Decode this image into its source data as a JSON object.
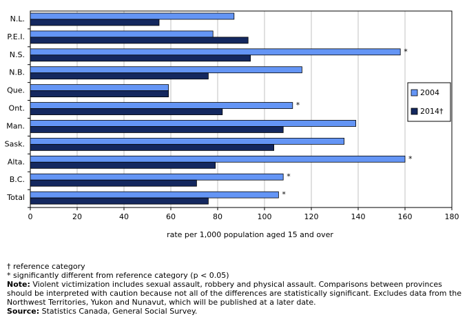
{
  "chart_data": {
    "type": "bar",
    "orientation": "horizontal",
    "categories": [
      "N.L.",
      "P.E.I.",
      "N.S.",
      "N.B.",
      "Que.",
      "Ont.",
      "Man.",
      "Sask.",
      "Alta.",
      "B.C.",
      "Total"
    ],
    "series": [
      {
        "name": "2004",
        "color": "#6495f5",
        "values": [
          87,
          78,
          158,
          116,
          59,
          112,
          139,
          134,
          160,
          108,
          106
        ],
        "markers": [
          null,
          null,
          "*",
          null,
          null,
          "*",
          null,
          null,
          "*",
          "*",
          "*"
        ]
      },
      {
        "name": "2014†",
        "color": "#14285f",
        "values": [
          55,
          93,
          94,
          76,
          59,
          82,
          108,
          104,
          79,
          71,
          76
        ]
      }
    ],
    "xlim": [
      0,
      180
    ],
    "xticks": [
      0,
      20,
      40,
      60,
      80,
      100,
      120,
      140,
      160,
      180
    ],
    "x_label": "rate per 1,000 population aged 15 and over",
    "grid": true,
    "legend": "right"
  },
  "footnotes": [
    "† reference category",
    "* significantly different from reference category (p < 0.05)"
  ],
  "note": {
    "label": "Note:",
    "text": "Violent victimization includes sexual assault, robbery and physical assault. Comparisons between provinces should be interpreted with caution because not all of the differences are statistically significant. Excludes data from the Northwest Territories, Yukon and Nunavut, which will be published at a later date."
  },
  "source": {
    "label": "Source:",
    "text": "Statistics Canada, General Social Survey."
  }
}
